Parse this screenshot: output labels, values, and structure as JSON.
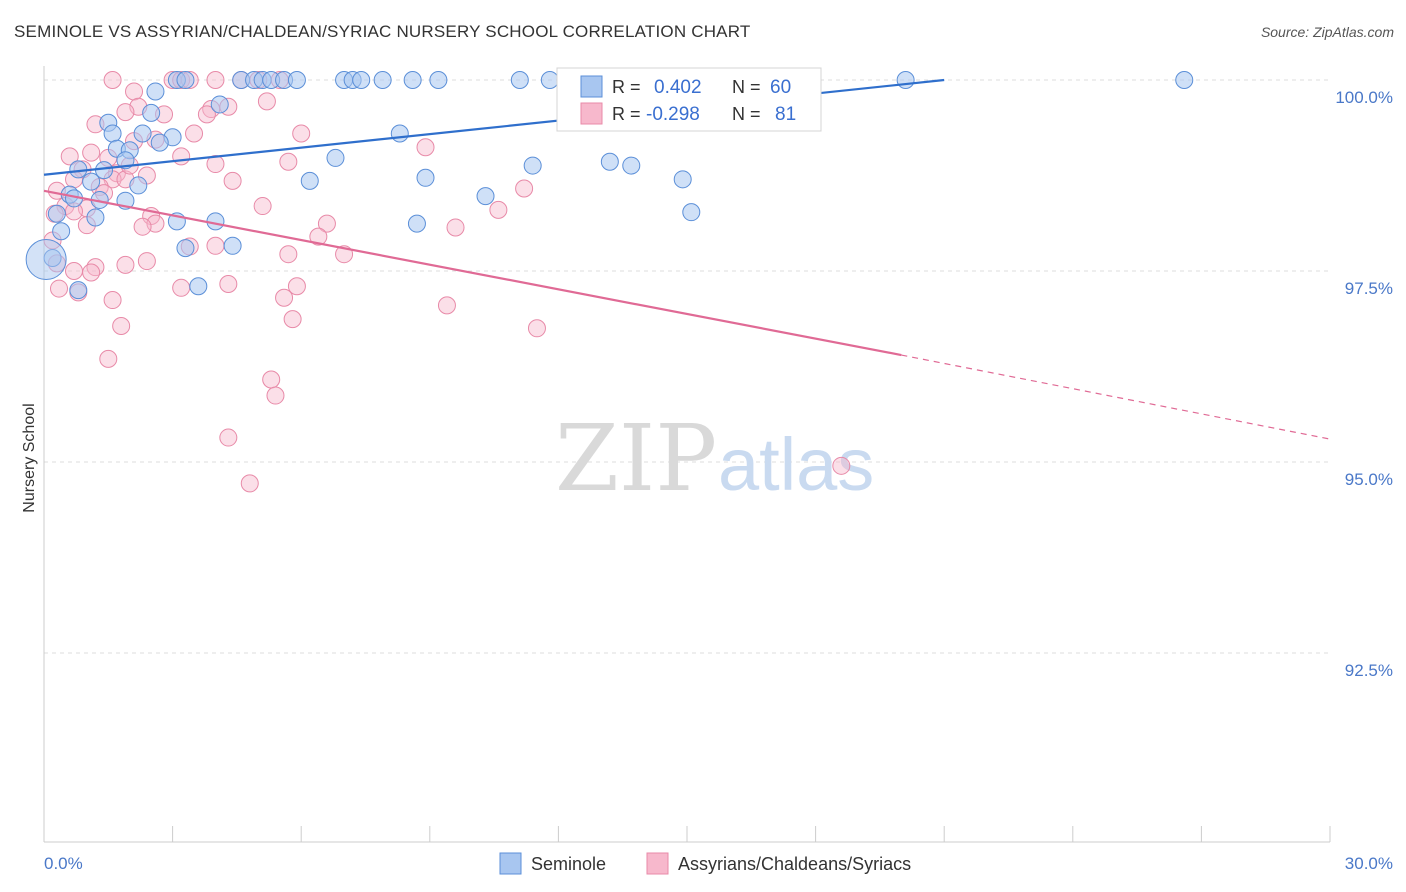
{
  "title": "SEMINOLE VS ASSYRIAN/CHALDEAN/SYRIAC NURSERY SCHOOL CORRELATION CHART",
  "source": "Source: ZipAtlas.com",
  "watermark": {
    "zip": "ZIP",
    "atlas": "atlas"
  },
  "colors": {
    "blue_fill": "#a8c6f0",
    "blue_stroke": "#5b8fd8",
    "blue_line": "#2f6fcc",
    "pink_fill": "#f7b8cc",
    "pink_stroke": "#e88aa8",
    "pink_line": "#e06a95",
    "axis_text": "#4a78c8",
    "grid": "#dddddd"
  },
  "chart_data": {
    "type": "scatter",
    "ylabel": "Nursery School",
    "xlim": [
      0,
      30
    ],
    "ylim": [
      90.8,
      100.6
    ],
    "x_tick_labels": [
      "0.0%",
      "30.0%"
    ],
    "y_ticks": [
      100.0,
      97.5,
      95.0,
      92.5
    ],
    "y_tick_labels": [
      "100.0%",
      "97.5%",
      "95.0%",
      "92.5%"
    ],
    "grid": "horizontal dashed",
    "legend": {
      "position": "top-center",
      "rows": [
        {
          "r_label": "R =",
          "r_value": "0.402",
          "n_label": "N =",
          "n_value": "60"
        },
        {
          "r_label": "R =",
          "r_value": "-0.298",
          "n_label": "N =",
          "n_value": "81"
        }
      ]
    },
    "series": [
      {
        "name": "Seminole",
        "color": "#a8c6f0",
        "trend": {
          "x": [
            0,
            21
          ],
          "y": [
            98.76,
            100.0
          ]
        },
        "points": [
          [
            3.1,
            100.0
          ],
          [
            3.3,
            100.0
          ],
          [
            4.6,
            100.0
          ],
          [
            4.9,
            100.0
          ],
          [
            5.1,
            100.0
          ],
          [
            5.3,
            100.0
          ],
          [
            5.6,
            100.0
          ],
          [
            5.9,
            100.0
          ],
          [
            7.0,
            100.0
          ],
          [
            7.2,
            100.0
          ],
          [
            7.4,
            100.0
          ],
          [
            7.9,
            100.0
          ],
          [
            8.6,
            100.0
          ],
          [
            9.2,
            100.0
          ],
          [
            11.1,
            100.0
          ],
          [
            11.8,
            100.0
          ],
          [
            14.5,
            100.0
          ],
          [
            15.3,
            100.0
          ],
          [
            20.1,
            100.0
          ],
          [
            26.6,
            100.0
          ],
          [
            2.6,
            99.85
          ],
          [
            4.1,
            99.68
          ],
          [
            2.5,
            99.57
          ],
          [
            1.5,
            99.44
          ],
          [
            1.6,
            99.3
          ],
          [
            2.3,
            99.3
          ],
          [
            8.3,
            99.3
          ],
          [
            3.0,
            99.25
          ],
          [
            1.7,
            99.1
          ],
          [
            2.0,
            99.08
          ],
          [
            2.7,
            99.18
          ],
          [
            1.9,
            98.95
          ],
          [
            6.8,
            98.98
          ],
          [
            11.4,
            98.88
          ],
          [
            13.2,
            98.93
          ],
          [
            13.7,
            98.88
          ],
          [
            1.4,
            98.82
          ],
          [
            0.8,
            98.83
          ],
          [
            1.1,
            98.67
          ],
          [
            2.2,
            98.62
          ],
          [
            6.2,
            98.68
          ],
          [
            8.9,
            98.72
          ],
          [
            14.9,
            98.7
          ],
          [
            0.6,
            98.5
          ],
          [
            0.7,
            98.45
          ],
          [
            1.3,
            98.43
          ],
          [
            1.9,
            98.42
          ],
          [
            10.3,
            98.48
          ],
          [
            15.1,
            98.27
          ],
          [
            0.3,
            98.25
          ],
          [
            1.2,
            98.2
          ],
          [
            3.1,
            98.15
          ],
          [
            4.0,
            98.15
          ],
          [
            8.7,
            98.12
          ],
          [
            0.4,
            98.02
          ],
          [
            3.3,
            97.8
          ],
          [
            4.4,
            97.83
          ],
          [
            0.2,
            97.67
          ],
          [
            0.8,
            97.25
          ],
          [
            3.6,
            97.3
          ]
        ]
      },
      {
        "name": "Assyrians/Chaldeans/Syriacs",
        "color": "#f7b8cc",
        "trend": {
          "x": [
            0,
            20
          ],
          "y": [
            98.55,
            96.4
          ]
        },
        "trend_dashed": {
          "x": [
            20,
            30
          ],
          "y": [
            96.4,
            95.3
          ]
        },
        "points": [
          [
            1.6,
            100.0
          ],
          [
            3.0,
            100.0
          ],
          [
            3.2,
            100.0
          ],
          [
            3.4,
            100.0
          ],
          [
            4.0,
            100.0
          ],
          [
            4.6,
            100.0
          ],
          [
            5.0,
            100.0
          ],
          [
            5.5,
            100.0
          ],
          [
            2.1,
            99.85
          ],
          [
            5.2,
            99.72
          ],
          [
            2.2,
            99.65
          ],
          [
            3.9,
            99.62
          ],
          [
            4.3,
            99.65
          ],
          [
            1.9,
            99.58
          ],
          [
            2.8,
            99.55
          ],
          [
            3.8,
            99.55
          ],
          [
            1.2,
            99.42
          ],
          [
            3.5,
            99.3
          ],
          [
            6.0,
            99.3
          ],
          [
            2.1,
            99.2
          ],
          [
            2.6,
            99.22
          ],
          [
            8.9,
            99.12
          ],
          [
            1.1,
            99.05
          ],
          [
            0.6,
            99.0
          ],
          [
            1.5,
            98.98
          ],
          [
            3.2,
            99.0
          ],
          [
            4.0,
            98.9
          ],
          [
            5.7,
            98.93
          ],
          [
            0.9,
            98.83
          ],
          [
            1.7,
            98.78
          ],
          [
            2.4,
            98.75
          ],
          [
            1.6,
            98.7
          ],
          [
            1.9,
            98.7
          ],
          [
            0.7,
            98.7
          ],
          [
            4.4,
            98.68
          ],
          [
            1.3,
            98.6
          ],
          [
            11.2,
            98.58
          ],
          [
            0.3,
            98.55
          ],
          [
            1.4,
            98.52
          ],
          [
            0.5,
            98.35
          ],
          [
            5.1,
            98.35
          ],
          [
            1.0,
            98.32
          ],
          [
            0.7,
            98.28
          ],
          [
            0.25,
            98.25
          ],
          [
            2.5,
            98.22
          ],
          [
            10.6,
            98.3
          ],
          [
            2.6,
            98.12
          ],
          [
            6.6,
            98.12
          ],
          [
            1.0,
            98.1
          ],
          [
            2.3,
            98.08
          ],
          [
            9.6,
            98.07
          ],
          [
            6.4,
            97.95
          ],
          [
            4.0,
            97.83
          ],
          [
            3.4,
            97.82
          ],
          [
            7.0,
            97.72
          ],
          [
            2.4,
            97.63
          ],
          [
            5.7,
            97.72
          ],
          [
            0.3,
            97.6
          ],
          [
            1.9,
            97.58
          ],
          [
            1.2,
            97.55
          ],
          [
            0.7,
            97.5
          ],
          [
            1.1,
            97.48
          ],
          [
            0.35,
            97.27
          ],
          [
            0.8,
            97.22
          ],
          [
            3.2,
            97.28
          ],
          [
            4.3,
            97.33
          ],
          [
            5.9,
            97.3
          ],
          [
            1.6,
            97.12
          ],
          [
            5.6,
            97.15
          ],
          [
            9.4,
            97.05
          ],
          [
            5.8,
            96.87
          ],
          [
            1.8,
            96.78
          ],
          [
            11.5,
            96.75
          ],
          [
            1.5,
            96.35
          ],
          [
            5.3,
            96.08
          ],
          [
            5.4,
            95.87
          ],
          [
            4.3,
            95.32
          ],
          [
            4.8,
            94.72
          ],
          [
            18.6,
            94.95
          ],
          [
            0.2,
            97.9
          ],
          [
            2.0,
            98.88
          ]
        ]
      }
    ]
  },
  "bottom_legend": [
    {
      "label": "Seminole",
      "color": "#a8c6f0"
    },
    {
      "label": "Assyrians/Chaldeans/Syriacs",
      "color": "#f7b8cc"
    }
  ]
}
